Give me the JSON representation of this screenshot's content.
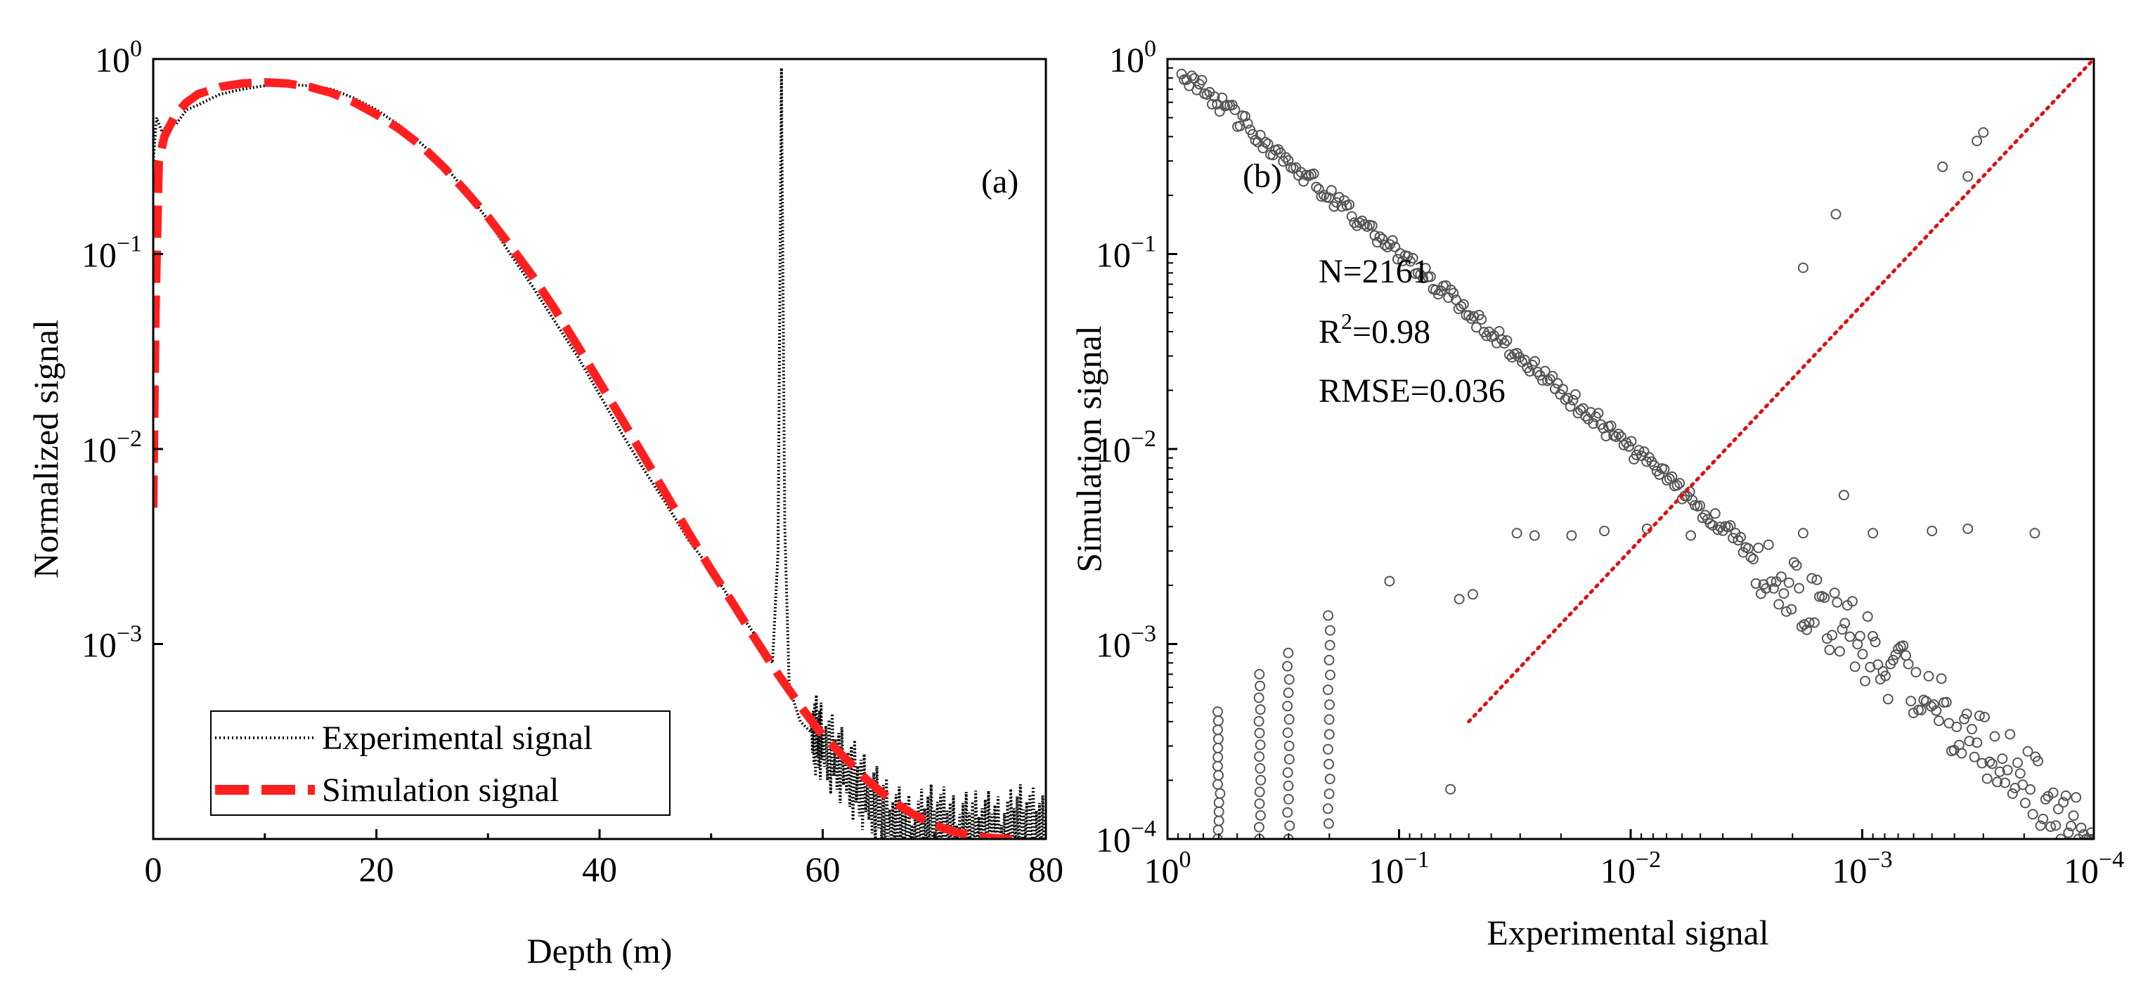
{
  "chart_data": [
    {
      "panel": "(a)",
      "type": "line",
      "xlabel": "Depth (m)",
      "ylabel": "Normalized signal",
      "xscale": "linear",
      "yscale": "log",
      "xlim": [
        0,
        80
      ],
      "ylim": [
        0.0001,
        1
      ],
      "xticks": [
        "0",
        "20",
        "40",
        "60",
        "80"
      ],
      "yticks": [
        {
          "value": 1,
          "base": "10",
          "exp": "0"
        },
        {
          "value": 0.1,
          "base": "10",
          "exp": "−1"
        },
        {
          "value": 0.01,
          "base": "10",
          "exp": "−2"
        },
        {
          "value": 0.001,
          "base": "10",
          "exp": "−3"
        }
      ],
      "legend": {
        "position": "bottom-left",
        "entries": [
          "Experimental signal",
          "Simulation signal"
        ]
      },
      "series": [
        {
          "name": "Experimental signal",
          "style": "dotted",
          "color": "#000000",
          "x": [
            0,
            0.3,
            0.8,
            1.5,
            2,
            3,
            4,
            5,
            6,
            8,
            10,
            12,
            14,
            16,
            18,
            20,
            22,
            24,
            26,
            28,
            30,
            32,
            34,
            36,
            38,
            40,
            42,
            44,
            46,
            48,
            50,
            52,
            54,
            55.5,
            56,
            56.3,
            56.6,
            57,
            58,
            59,
            60,
            62,
            64,
            66,
            68,
            70,
            72,
            74,
            76,
            78,
            80
          ],
          "y": [
            0.3,
            0.5,
            0.42,
            0.48,
            0.46,
            0.55,
            0.58,
            0.62,
            0.66,
            0.7,
            0.73,
            0.74,
            0.73,
            0.7,
            0.63,
            0.55,
            0.46,
            0.37,
            0.29,
            0.21,
            0.15,
            0.1,
            0.068,
            0.045,
            0.03,
            0.019,
            0.012,
            0.0078,
            0.0052,
            0.0034,
            0.0024,
            0.0016,
            0.0011,
            0.0008,
            0.003,
            0.9,
            0.004,
            0.0006,
            0.0004,
            0.00035,
            0.0003,
            0.00022,
            0.00016,
            0.00012,
            0.0001,
            0.00012,
            0.0001,
            0.00011,
            0.0001,
            0.00012,
            0.0001
          ]
        },
        {
          "name": "Simulation signal",
          "style": "dashed",
          "color": "#ff1f1f",
          "x": [
            0,
            0.2,
            0.5,
            1,
            2,
            3,
            4,
            6,
            8,
            10,
            12,
            14,
            16,
            18,
            20,
            22,
            24,
            26,
            28,
            30,
            32,
            34,
            36,
            38,
            40,
            42,
            44,
            46,
            48,
            50,
            52,
            54,
            56,
            58,
            60,
            62,
            64,
            66,
            68,
            70,
            72,
            74,
            76,
            77
          ],
          "y": [
            0.005,
            0.05,
            0.3,
            0.4,
            0.52,
            0.6,
            0.66,
            0.72,
            0.75,
            0.76,
            0.75,
            0.72,
            0.67,
            0.6,
            0.52,
            0.44,
            0.36,
            0.28,
            0.21,
            0.155,
            0.11,
            0.077,
            0.052,
            0.034,
            0.022,
            0.0142,
            0.0091,
            0.0058,
            0.0037,
            0.0024,
            0.0016,
            0.00105,
            0.0007,
            0.00048,
            0.00034,
            0.00026,
            0.0002,
            0.00016,
            0.000135,
            0.000118,
            0.000108,
            0.0001025,
            0.0001005,
            0.0001
          ]
        }
      ]
    },
    {
      "panel": "(b)",
      "type": "scatter",
      "xlabel": "Experimental signal",
      "ylabel": "Simulation signal",
      "xscale": "log-reversed",
      "yscale": "log",
      "xlim": [
        1,
        0.0001
      ],
      "ylim": [
        0.0001,
        1
      ],
      "xticks": [
        {
          "value": 1,
          "base": "10",
          "exp": "0"
        },
        {
          "value": 0.1,
          "base": "10",
          "exp": "−1"
        },
        {
          "value": 0.01,
          "base": "10",
          "exp": "−2"
        },
        {
          "value": 0.001,
          "base": "10",
          "exp": "−3"
        },
        {
          "value": 0.0001,
          "base": "10",
          "exp": "−4"
        }
      ],
      "yticks": [
        {
          "value": 1,
          "base": "10",
          "exp": "0"
        },
        {
          "value": 0.1,
          "base": "10",
          "exp": "−1"
        },
        {
          "value": 0.01,
          "base": "10",
          "exp": "−2"
        },
        {
          "value": 0.001,
          "base": "10",
          "exp": "−3"
        },
        {
          "value": 0.0001,
          "base": "10",
          "exp": "−4"
        }
      ],
      "stats": {
        "n": "N=2161",
        "r2_prefix": "R",
        "r2_exp": "2",
        "r2_value": "=0.98",
        "rmse": "RMSE=0.036"
      },
      "fit_line": {
        "color": "#e01010",
        "style": "dotted",
        "from": [
          0.05,
          0.0004
        ],
        "to": [
          0.0001,
          1
        ]
      },
      "outliers": [
        {
          "x": 0.0018,
          "y": 0.085
        },
        {
          "x": 0.0013,
          "y": 0.16
        },
        {
          "x": 0.00035,
          "y": 0.25
        },
        {
          "x": 0.00032,
          "y": 0.38
        },
        {
          "x": 0.0003,
          "y": 0.42
        },
        {
          "x": 0.00045,
          "y": 0.28
        },
        {
          "x": 0.0012,
          "y": 0.0058
        },
        {
          "x": 0.031,
          "y": 0.0037
        },
        {
          "x": 0.026,
          "y": 0.0036
        },
        {
          "x": 0.018,
          "y": 0.0036
        },
        {
          "x": 0.013,
          "y": 0.0038
        },
        {
          "x": 0.0085,
          "y": 0.0039
        },
        {
          "x": 0.0055,
          "y": 0.0036
        },
        {
          "x": 0.0018,
          "y": 0.0037
        },
        {
          "x": 0.0009,
          "y": 0.0037
        },
        {
          "x": 0.0005,
          "y": 0.0038
        },
        {
          "x": 0.00035,
          "y": 0.0039
        },
        {
          "x": 0.00018,
          "y": 0.0037
        },
        {
          "x": 0.048,
          "y": 0.0018
        },
        {
          "x": 0.055,
          "y": 0.0017
        },
        {
          "x": 0.06,
          "y": 0.00018
        },
        {
          "x": 0.11,
          "y": 0.0021
        }
      ],
      "columns": [
        {
          "x": 0.6,
          "ymin": 0.0001,
          "ymax": 0.00045
        },
        {
          "x": 0.4,
          "ymin": 0.0001,
          "ymax": 0.0007
        },
        {
          "x": 0.3,
          "ymin": 0.0001,
          "ymax": 0.0009
        },
        {
          "x": 0.2,
          "ymin": 0.00012,
          "ymax": 0.0014
        }
      ]
    }
  ]
}
